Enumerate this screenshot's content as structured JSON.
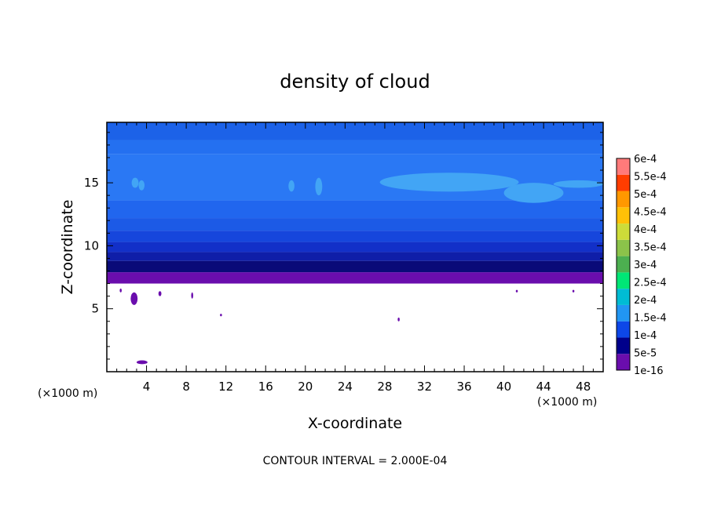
{
  "chart_data": {
    "type": "heatmap",
    "title": "density of cloud",
    "xlabel": "X-coordinate",
    "ylabel": "Z-coordinate",
    "x_unit": "(×1000 m)",
    "y_unit": "(×1000 m)",
    "xlim": [
      0,
      50
    ],
    "ylim": [
      0,
      19.8
    ],
    "x_ticks": [
      4,
      8,
      12,
      16,
      20,
      24,
      28,
      32,
      36,
      40,
      44,
      48
    ],
    "y_ticks": [
      5,
      10,
      15
    ],
    "footer": "CONTOUR INTERVAL = 2.000E-04",
    "colorbar": {
      "levels": [
        {
          "label": "1e-16",
          "color": "#6a0dad"
        },
        {
          "label": "5e-5",
          "color": "#00008b"
        },
        {
          "label": "1e-4",
          "color": "#0d47e8"
        },
        {
          "label": "1.5e-4",
          "color": "#2196f3"
        },
        {
          "label": "2e-4",
          "color": "#00bcd4"
        },
        {
          "label": "2.5e-4",
          "color": "#00e676"
        },
        {
          "label": "3e-4",
          "color": "#4caf50"
        },
        {
          "label": "3.5e-4",
          "color": "#8bc34a"
        },
        {
          "label": "4e-4",
          "color": "#cddc39"
        },
        {
          "label": "4.5e-4",
          "color": "#ffc107"
        },
        {
          "label": "5e-4",
          "color": "#ff9800"
        },
        {
          "label": "5.5e-4",
          "color": "#ff3d00"
        },
        {
          "label": "6e-4",
          "color": "#ff7a7a"
        }
      ]
    },
    "bands": [
      {
        "z": [
          7.0,
          7.9
        ],
        "color": "#6a0dad"
      },
      {
        "z": [
          7.9,
          8.8
        ],
        "color": "#0a0a78"
      },
      {
        "z": [
          8.8,
          9.5
        ],
        "color": "#0f1ea8"
      },
      {
        "z": [
          9.5,
          10.3
        ],
        "color": "#1230c8"
      },
      {
        "z": [
          10.3,
          11.2
        ],
        "color": "#1646dc"
      },
      {
        "z": [
          11.2,
          12.2
        ],
        "color": "#1c5ae6"
      },
      {
        "z": [
          12.2,
          13.6
        ],
        "color": "#2166ee"
      },
      {
        "z": [
          13.6,
          17.3
        ],
        "color": "#2a78f4"
      },
      {
        "z": [
          17.3,
          18.4
        ],
        "color": "#2470f0"
      },
      {
        "z": [
          18.4,
          19.8
        ],
        "color": "#1c62e8"
      }
    ],
    "features": [
      {
        "kind": "blob",
        "x": [
          27.5,
          41.5
        ],
        "z": [
          14.3,
          15.8
        ],
        "color": "#42a5f5"
      },
      {
        "kind": "blob",
        "x": [
          40.0,
          46.0
        ],
        "z": [
          13.4,
          15.0
        ],
        "color": "#42a5f5"
      },
      {
        "kind": "blob",
        "x": [
          45.0,
          50.0
        ],
        "z": [
          14.6,
          15.2
        ],
        "color": "#42a5f5"
      },
      {
        "kind": "blob",
        "x": [
          18.3,
          18.9
        ],
        "z": [
          14.3,
          15.2
        ],
        "color": "#42a5f5"
      },
      {
        "kind": "blob",
        "x": [
          21.0,
          21.7
        ],
        "z": [
          14.0,
          15.4
        ],
        "color": "#42a5f5"
      },
      {
        "kind": "blob",
        "x": [
          2.5,
          3.2
        ],
        "z": [
          14.6,
          15.4
        ],
        "color": "#42a5f5"
      },
      {
        "kind": "blob",
        "x": [
          3.2,
          3.8
        ],
        "z": [
          14.4,
          15.2
        ],
        "color": "#42a5f5"
      },
      {
        "kind": "speck",
        "x": [
          2.4,
          3.1
        ],
        "z": [
          5.3,
          6.3
        ],
        "color": "#6a0dad"
      },
      {
        "kind": "speck",
        "x": [
          5.2,
          5.5
        ],
        "z": [
          6.0,
          6.4
        ],
        "color": "#6a0dad"
      },
      {
        "kind": "speck",
        "x": [
          8.5,
          8.7
        ],
        "z": [
          5.8,
          6.3
        ],
        "color": "#6a0dad"
      },
      {
        "kind": "speck",
        "x": [
          11.4,
          11.6
        ],
        "z": [
          4.4,
          4.6
        ],
        "color": "#6a0dad"
      },
      {
        "kind": "speck",
        "x": [
          29.3,
          29.5
        ],
        "z": [
          4.0,
          4.3
        ],
        "color": "#6a0dad"
      },
      {
        "kind": "speck",
        "x": [
          3.0,
          4.1
        ],
        "z": [
          0.6,
          0.9
        ],
        "color": "#6a0dad"
      },
      {
        "kind": "speck",
        "x": [
          41.2,
          41.4
        ],
        "z": [
          6.3,
          6.5
        ],
        "color": "#6a0dad"
      },
      {
        "kind": "speck",
        "x": [
          46.9,
          47.1
        ],
        "z": [
          6.3,
          6.5
        ],
        "color": "#6a0dad"
      },
      {
        "kind": "speck",
        "x": [
          1.3,
          1.5
        ],
        "z": [
          6.3,
          6.6
        ],
        "color": "#6a0dad"
      }
    ]
  }
}
